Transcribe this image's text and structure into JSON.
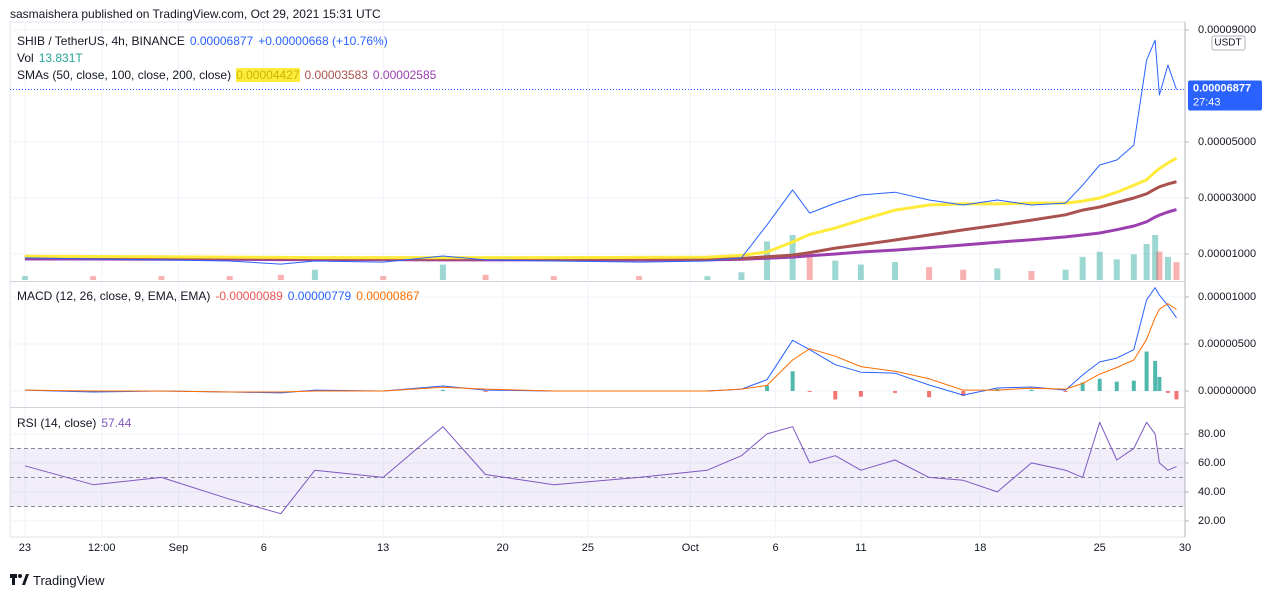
{
  "header": {
    "byline": "sasmaishera published on TradingView.com, Oct 29, 2021 15:31 UTC"
  },
  "footer": {
    "brand": "TradingView"
  },
  "chart_data": [
    {
      "type": "price",
      "symbol": "SHIB / TetherUS, 4h, BINANCE",
      "last_label": "0.00006877",
      "change_label": "+0.00000668 (+10.76%)",
      "countdown": "27:43",
      "currency": "USDT",
      "sma_legend": "SMAs (50, close, 100, close, 200, close)",
      "x": [
        "2021-08-23",
        "2021-08-27",
        "2021-08-31",
        "2021-09-04",
        "2021-09-07",
        "2021-09-09",
        "2021-09-13",
        "2021-09-16T12:00",
        "2021-09-19",
        "2021-09-23",
        "2021-09-28",
        "2021-10-02",
        "2021-10-04",
        "2021-10-05T12:00",
        "2021-10-07",
        "2021-10-08",
        "2021-10-09T12:00",
        "2021-10-11",
        "2021-10-13",
        "2021-10-15",
        "2021-10-17",
        "2021-10-19",
        "2021-10-21",
        "2021-10-23",
        "2021-10-24",
        "2021-10-25",
        "2021-10-26",
        "2021-10-27",
        "2021-10-27T18:00",
        "2021-10-28T06:00",
        "2021-10-28T12:00",
        "2021-10-29T00:00",
        "2021-10-29T12:00"
      ],
      "xlim": [
        "2021-08-22T03:00",
        "2021-10-30T00:00"
      ],
      "ylim": [
        7.1e-07,
        9.29e-05
      ],
      "yticks": [
        {
          "value": 1e-05,
          "label": "0.00001000"
        },
        {
          "value": 3e-05,
          "label": "0.00003000"
        },
        {
          "value": 5e-05,
          "label": "0.00005000"
        },
        {
          "value": 9e-05,
          "label": "0.00009000"
        }
      ],
      "grid": true,
      "series": [
        {
          "name": "SHIB / TetherUS, 4h, BINANCE",
          "color": "#2962ff",
          "width": 1,
          "values": [
            8.6e-06,
            8.2e-06,
            7.9e-06,
            7.5e-06,
            6.4e-06,
            7.5e-06,
            7.1e-06,
            9.3e-06,
            7.9e-06,
            7.5e-06,
            7.1e-06,
            7.5e-06,
            8.6e-06,
            2.04e-05,
            3.29e-05,
            2.46e-05,
            2.82e-05,
            3.11e-05,
            3.21e-05,
            2.93e-05,
            2.75e-05,
            2.93e-05,
            2.75e-05,
            2.82e-05,
            3.46e-05,
            4.18e-05,
            4.36e-05,
            4.89e-05,
            7.93e-05,
            8.64e-05,
            6.68e-05,
            7.75e-05,
            6.877e-05
          ]
        },
        {
          "color": "#ffeb3b",
          "width": 3,
          "legend_label": "0.00004427",
          "values": [
            9.2e-06,
            9.1e-06,
            9e-06,
            8.9e-06,
            8.8e-06,
            8.7e-06,
            8.7e-06,
            8.7e-06,
            8.7e-06,
            8.7e-06,
            8.8e-06,
            8.9e-06,
            9.5e-06,
            1.07e-05,
            1.43e-05,
            1.7e-05,
            1.93e-05,
            2.21e-05,
            2.57e-05,
            2.75e-05,
            2.79e-05,
            2.79e-05,
            2.82e-05,
            2.82e-05,
            2.89e-05,
            3e-05,
            3.21e-05,
            3.46e-05,
            3.65e-05,
            3.93e-05,
            4.05e-05,
            4.25e-05,
            4.427e-05
          ]
        },
        {
          "color": "#a9524e",
          "width": 3,
          "legend_label": "0.00003583",
          "values": [
            8.8e-06,
            8.7e-06,
            8.6e-06,
            8.5e-06,
            8.4e-06,
            8.3e-06,
            8.2e-06,
            8.2e-06,
            8.2e-06,
            8.2e-06,
            8.2e-06,
            8.2e-06,
            8.4e-06,
            9e-06,
            9.6e-06,
            1.05e-05,
            1.21e-05,
            1.33e-05,
            1.5e-05,
            1.68e-05,
            1.86e-05,
            2.03e-05,
            2.21e-05,
            2.4e-05,
            2.57e-05,
            2.68e-05,
            2.84e-05,
            3e-05,
            3.15e-05,
            3.32e-05,
            3.4e-05,
            3.5e-05,
            3.583e-05
          ]
        },
        {
          "color": "#9c3fb0",
          "width": 3,
          "legend_label": "0.00002585",
          "values": [
            8.2e-06,
            8.2e-06,
            8.1e-06,
            8.1e-06,
            8e-06,
            8e-06,
            8e-06,
            7.9e-06,
            7.9e-06,
            7.9e-06,
            7.9e-06,
            7.9e-06,
            8.1e-06,
            8.5e-06,
            8.9e-06,
            9.4e-06,
            1e-05,
            1.07e-05,
            1.14e-05,
            1.23e-05,
            1.32e-05,
            1.42e-05,
            1.51e-05,
            1.61e-05,
            1.68e-05,
            1.75e-05,
            1.87e-05,
            2e-05,
            2.15e-05,
            2.32e-05,
            2.39e-05,
            2.5e-05,
            2.585e-05
          ]
        }
      ],
      "volume": {
        "name": "Vol",
        "legend_label": "13.831T",
        "up_color": "#26a69a",
        "down_color": "#ef5350",
        "values": [
          3000000000000.0,
          3000000000000.0,
          3000000000000.0,
          3000000000000.0,
          4000000000000.0,
          8000000000000.0,
          3000000000000.0,
          12000000000000.0,
          4000000000000.0,
          3000000000000.0,
          3000000000000.0,
          3000000000000.0,
          6000000000000.0,
          30000000000000.0,
          35000000000000.0,
          20000000000000.0,
          15000000000000.0,
          12000000000000.0,
          14000000000000.0,
          10000000000000.0,
          8000000000000.0,
          9000000000000.0,
          7000000000000.0,
          8000000000000.0,
          18000000000000.0,
          22000000000000.0,
          16000000000000.0,
          20000000000000.0,
          28000000000000.0,
          35000000000000.0,
          22000000000000.0,
          18000000000000.0,
          13831000000000.0
        ]
      }
    },
    {
      "type": "macd",
      "title": "MACD (12, 26, close, 9, EMA, EMA)",
      "x": [
        "2021-08-23",
        "2021-08-27",
        "2021-08-31",
        "2021-09-04",
        "2021-09-07",
        "2021-09-09",
        "2021-09-13",
        "2021-09-16T12:00",
        "2021-09-19",
        "2021-09-23",
        "2021-09-28",
        "2021-10-02",
        "2021-10-04",
        "2021-10-05T12:00",
        "2021-10-07",
        "2021-10-08",
        "2021-10-09T12:00",
        "2021-10-11",
        "2021-10-13",
        "2021-10-15",
        "2021-10-17",
        "2021-10-19",
        "2021-10-21",
        "2021-10-23",
        "2021-10-24",
        "2021-10-25",
        "2021-10-26",
        "2021-10-27",
        "2021-10-27T18:00",
        "2021-10-28T06:00",
        "2021-10-28T12:00",
        "2021-10-29T00:00",
        "2021-10-29T12:00"
      ],
      "xlim": [
        "2021-08-22T03:00",
        "2021-10-30T00:00"
      ],
      "ylim": [
        -1.7e-06,
        1.149e-05
      ],
      "yticks": [
        {
          "value": 0,
          "label": "0.00000000"
        },
        {
          "value": 5e-06,
          "label": "0.00000500"
        },
        {
          "value": 1e-05,
          "label": "0.00001000"
        }
      ],
      "grid": true,
      "histogram": {
        "legend_label": "-0.00000089",
        "up_color": "#26a69a",
        "down_color": "#ef5350",
        "values": [
          0,
          0,
          0,
          0,
          0,
          0,
          0,
          1.3e-07,
          -1e-07,
          0,
          0,
          0,
          0,
          6e-07,
          2.1e-06,
          -1e-07,
          -9e-07,
          -6e-07,
          -2e-07,
          -6.6e-07,
          -5.3e-07,
          2.2e-07,
          1.3e-07,
          -1e-07,
          9e-07,
          1.3e-06,
          1e-06,
          1.1e-06,
          4.2e-06,
          3.2e-06,
          1.5e-06,
          -2e-07,
          -8.9e-07
        ]
      },
      "series": [
        {
          "color": "#2962ff",
          "legend_label": "0.00000779",
          "values": [
            1e-07,
            -1e-07,
            0,
            -1e-07,
            -2e-07,
            1e-07,
            0,
            5.3e-07,
            1e-07,
            0,
            0,
            0,
            2e-07,
            1.2e-06,
            5.4e-06,
            4.4e-06,
            2.8e-06,
            2e-06,
            1.9e-06,
            6.4e-07,
            -4.3e-07,
            3.2e-07,
            4.3e-07,
            1e-07,
            1.7e-06,
            3.1e-06,
            3.5e-06,
            4.4e-06,
            9.7e-06,
            1.1e-05,
            1.02e-05,
            9.1e-06,
            7.79e-06
          ]
        },
        {
          "color": "#ff6d00",
          "legend_label": "0.00000867",
          "values": [
            1e-07,
            0,
            0,
            -1e-07,
            -1e-07,
            0,
            0,
            4e-07,
            2e-07,
            0,
            0,
            0,
            2e-07,
            6e-07,
            3.3e-06,
            4.5e-06,
            3.7e-06,
            2.6e-06,
            2.1e-06,
            1.3e-06,
            1e-07,
            1e-07,
            3e-07,
            2e-07,
            8e-07,
            1.8e-06,
            2.5e-06,
            3.3e-06,
            5.5e-06,
            7.8e-06,
            8.7e-06,
            9.3e-06,
            8.67e-06
          ]
        }
      ]
    },
    {
      "type": "rsi",
      "title": "RSI (14, close)",
      "x": [
        "2021-08-23",
        "2021-08-27",
        "2021-08-31",
        "2021-09-04",
        "2021-09-07",
        "2021-09-09",
        "2021-09-13",
        "2021-09-16T12:00",
        "2021-09-19",
        "2021-09-23",
        "2021-09-28",
        "2021-10-02",
        "2021-10-04",
        "2021-10-05T12:00",
        "2021-10-07",
        "2021-10-08",
        "2021-10-09T12:00",
        "2021-10-11",
        "2021-10-13",
        "2021-10-15",
        "2021-10-17",
        "2021-10-19",
        "2021-10-21",
        "2021-10-23",
        "2021-10-24",
        "2021-10-25",
        "2021-10-26",
        "2021-10-27",
        "2021-10-27T18:00",
        "2021-10-28T06:00",
        "2021-10-28T12:00",
        "2021-10-29T00:00",
        "2021-10-29T12:00"
      ],
      "xlim": [
        "2021-08-22T03:00",
        "2021-10-30T00:00"
      ],
      "ylim": [
        10.3,
        97.2
      ],
      "yticks": [
        {
          "value": 20,
          "label": "20.00"
        },
        {
          "value": 40,
          "label": "40.00"
        },
        {
          "value": 60,
          "label": "60.00"
        },
        {
          "value": 80,
          "label": "80.00"
        }
      ],
      "band": [
        30,
        70
      ],
      "midline": 50,
      "xticks": [
        {
          "value": "2021-08-23",
          "label": "23"
        },
        {
          "value": "2021-08-27T12:00",
          "label": "12:00"
        },
        {
          "value": "2021-09-01",
          "label": "Sep"
        },
        {
          "value": "2021-09-06",
          "label": "6"
        },
        {
          "value": "2021-09-13",
          "label": "13"
        },
        {
          "value": "2021-09-20",
          "label": "20"
        },
        {
          "value": "2021-09-25",
          "label": "25"
        },
        {
          "value": "2021-10-01",
          "label": "Oct"
        },
        {
          "value": "2021-10-06",
          "label": "6"
        },
        {
          "value": "2021-10-11",
          "label": "11"
        },
        {
          "value": "2021-10-18",
          "label": "18"
        },
        {
          "value": "2021-10-25",
          "label": "25"
        },
        {
          "value": "2021-10-30",
          "label": "30"
        }
      ],
      "grid": true,
      "series": [
        {
          "color": "#7e57c2",
          "values": [
            58,
            45,
            50,
            35,
            25,
            55,
            50,
            85,
            52,
            45,
            50,
            55,
            65,
            80,
            85,
            60,
            65,
            55,
            62,
            50,
            48,
            40,
            60,
            55,
            50,
            88,
            62,
            70,
            88,
            80,
            60,
            55,
            57.44
          ]
        }
      ]
    }
  ]
}
